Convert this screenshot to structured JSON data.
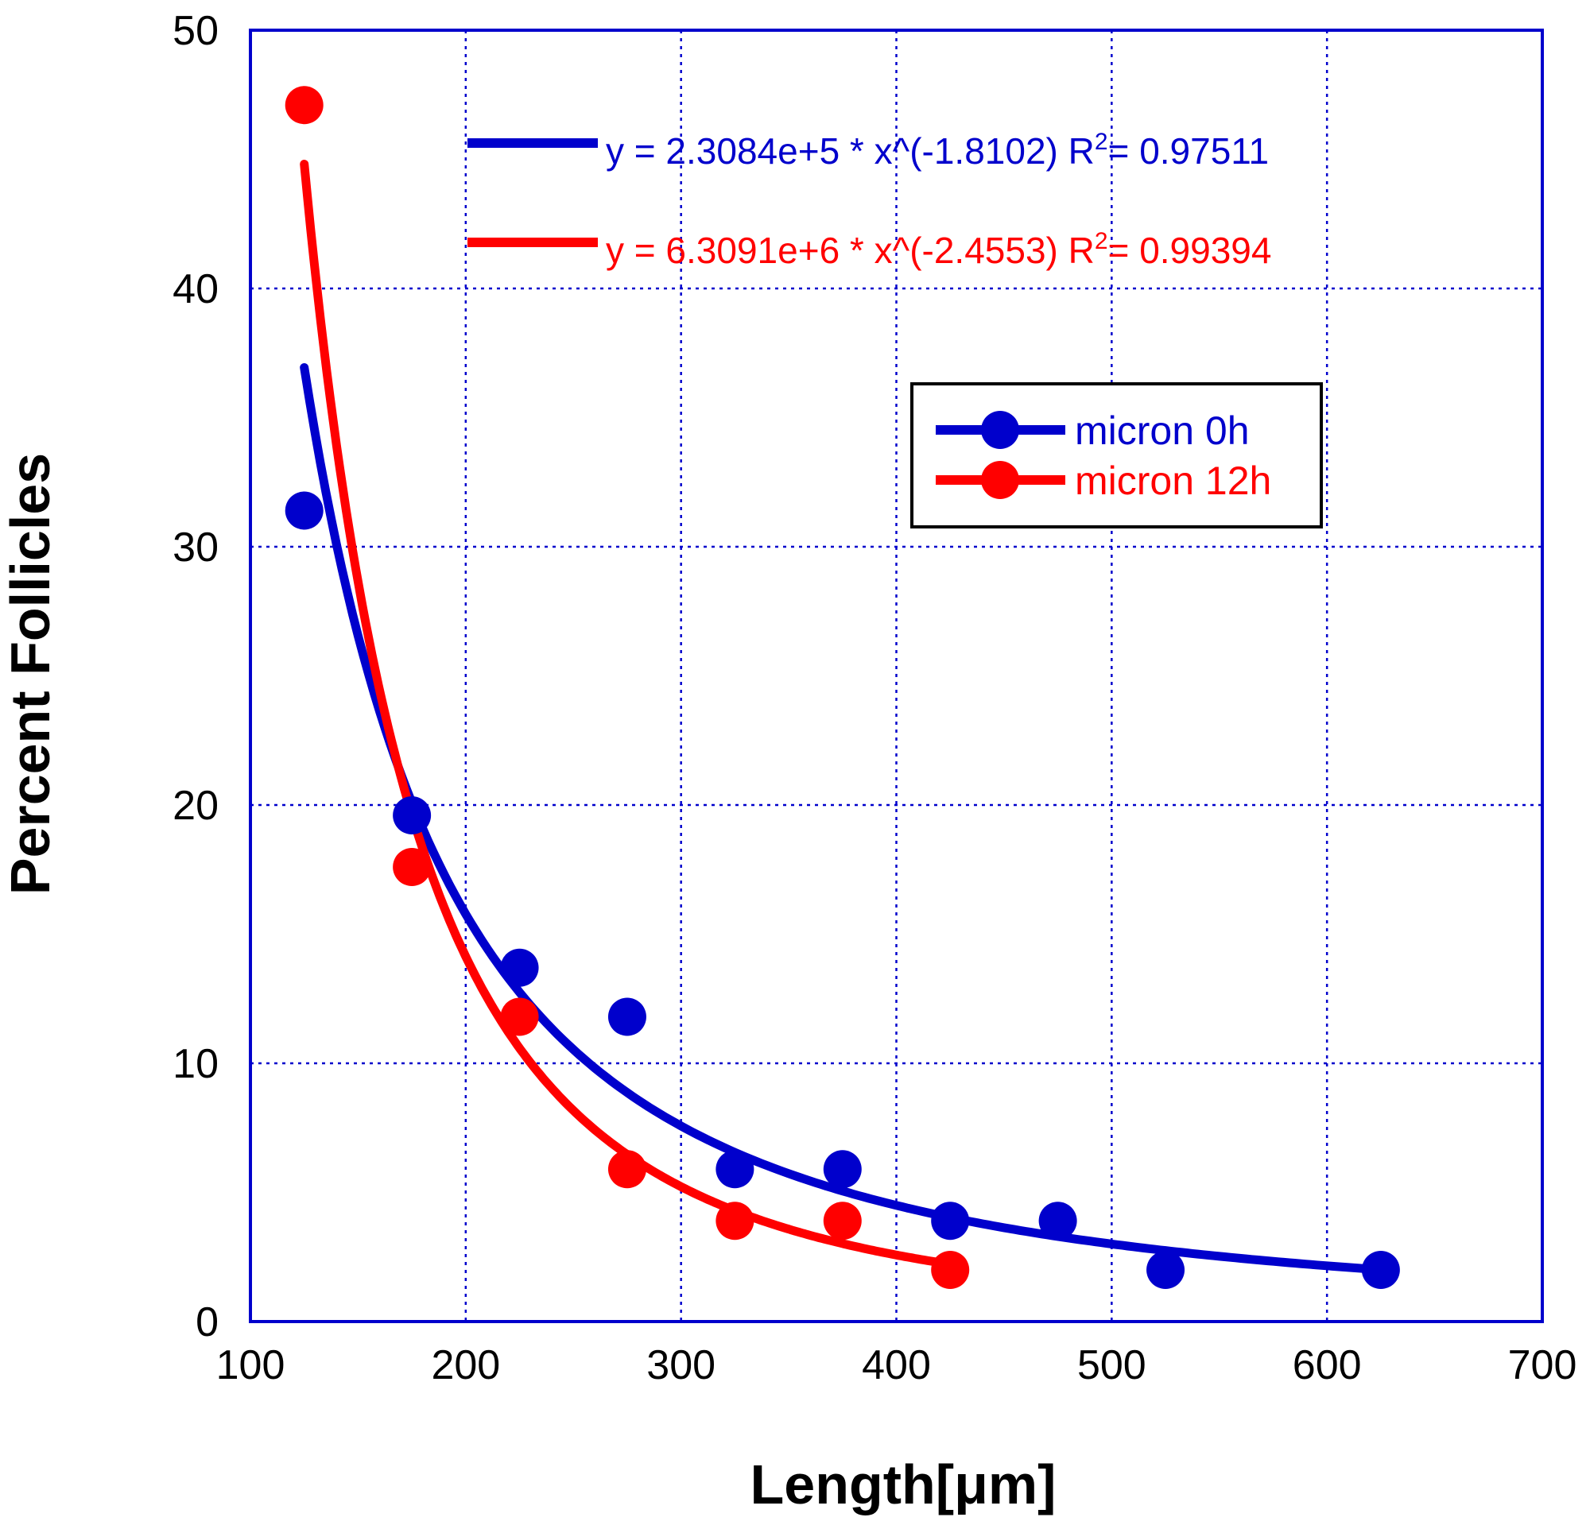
{
  "chart_data": {
    "type": "scatter",
    "title": "",
    "xlabel": "Length[μm]",
    "ylabel": "Percent Follicles",
    "xlim": [
      100,
      700
    ],
    "ylim": [
      0,
      50
    ],
    "xticks": [
      100,
      200,
      300,
      400,
      500,
      600,
      700
    ],
    "yticks": [
      0,
      10,
      20,
      30,
      40,
      50
    ],
    "x_tick_labels": [
      "100",
      "200",
      "300",
      "400",
      "500",
      "600",
      "700"
    ],
    "y_tick_labels": [
      "0",
      "10",
      "20",
      "30",
      "40",
      "50"
    ],
    "grid": true,
    "legend_position": "top-right",
    "series": [
      {
        "name": "micron 0h",
        "color": "#0000cc",
        "x": [
          125,
          175,
          225,
          275,
          325,
          375,
          425,
          475,
          525,
          625
        ],
        "y": [
          31.4,
          19.6,
          13.7,
          11.8,
          5.9,
          5.9,
          3.9,
          3.9,
          2.0,
          2.0
        ],
        "fit": {
          "a": 230840,
          "b": -1.8102,
          "x_range": [
            125,
            625
          ]
        }
      },
      {
        "name": "micron 12h",
        "color": "#ff0000",
        "x": [
          125,
          175,
          225,
          275,
          325,
          375,
          425
        ],
        "y": [
          47.1,
          17.6,
          11.8,
          5.9,
          3.9,
          3.9,
          2.0
        ],
        "fit": {
          "a": 6309100,
          "b": -2.4553,
          "x_range": [
            125,
            425
          ]
        }
      }
    ],
    "annotations": [
      {
        "color": "#0000cc",
        "prefix": "y = 2.3084e+5 * x^(-1.8102)   R",
        "sup": "2",
        "suffix": "= 0.97511"
      },
      {
        "color": "#ff0000",
        "prefix": "y = 6.3091e+6 * x^(-2.4553)   R",
        "sup": "2",
        "suffix": "= 0.99394"
      }
    ]
  }
}
